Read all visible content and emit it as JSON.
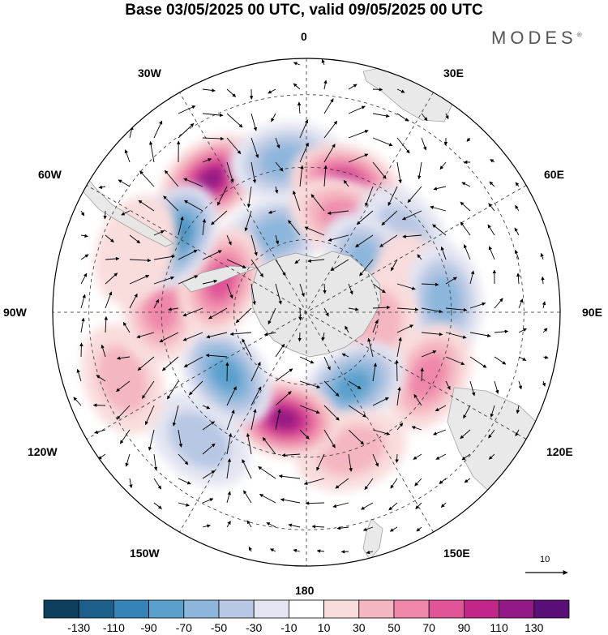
{
  "title": "Base 03/05/2025 00 UTC, valid 09/05/2025 00 UTC",
  "brand": "MODES",
  "brand_mark": "®",
  "longitude_labels": {
    "lon_0": "0",
    "lon_30e": "30E",
    "lon_60e": "60E",
    "lon_90e": "90E",
    "lon_120e": "120E",
    "lon_150e": "150E",
    "lon_180": "180",
    "lon_150w": "150W",
    "lon_120w": "120W",
    "lon_90w": "90W",
    "lon_60w": "60W",
    "lon_30w": "30W"
  },
  "reference_vector": {
    "label": "10"
  },
  "colorbar": {
    "colors": [
      "#0d3f5e",
      "#1b5f8a",
      "#3584b8",
      "#5aa0cc",
      "#8cb6dc",
      "#b8c7e3",
      "#e3e5f2",
      "#ffffff",
      "#f9dcdc",
      "#f4b6c0",
      "#ef87ab",
      "#e05598",
      "#c2268a",
      "#931a86",
      "#5a0f78"
    ],
    "ticks": [
      "-130",
      "-110",
      "-90",
      "-70",
      "-50",
      "-30",
      "-10",
      "10",
      "30",
      "50",
      "70",
      "90",
      "110",
      "130"
    ]
  },
  "anomalies": [
    {
      "lon": -36,
      "lat": -45,
      "value": 110
    },
    {
      "lon": -22,
      "lat": -67,
      "value": -50
    },
    {
      "lon": -8,
      "lat": -48,
      "value": -60
    },
    {
      "lon": 17,
      "lat": -53,
      "value": 90
    },
    {
      "lon": 22,
      "lat": -62,
      "value": 50
    },
    {
      "lon": 52,
      "lat": -56,
      "value": -40
    },
    {
      "lon": 52,
      "lat": -68,
      "value": -60
    },
    {
      "lon": 78,
      "lat": -60,
      "value": 20
    },
    {
      "lon": 85,
      "lat": -52,
      "value": -50
    },
    {
      "lon": 100,
      "lat": -70,
      "value": 30
    },
    {
      "lon": 118,
      "lat": -52,
      "value": 55
    },
    {
      "lon": 148,
      "lat": -66,
      "value": -75
    },
    {
      "lon": 162,
      "lat": -50,
      "value": 40
    },
    {
      "lon": -168,
      "lat": -60,
      "value": 110
    },
    {
      "lon": -140,
      "lat": -44,
      "value": -40
    },
    {
      "lon": -128,
      "lat": -62,
      "value": -85
    },
    {
      "lon": -110,
      "lat": -36,
      "value": 30
    },
    {
      "lon": -88,
      "lat": -50,
      "value": 55
    },
    {
      "lon": -70,
      "lat": -65,
      "value": 85
    },
    {
      "lon": -60,
      "lat": -48,
      "value": -90
    },
    {
      "lon": -70,
      "lat": -40,
      "value": 20
    }
  ]
}
